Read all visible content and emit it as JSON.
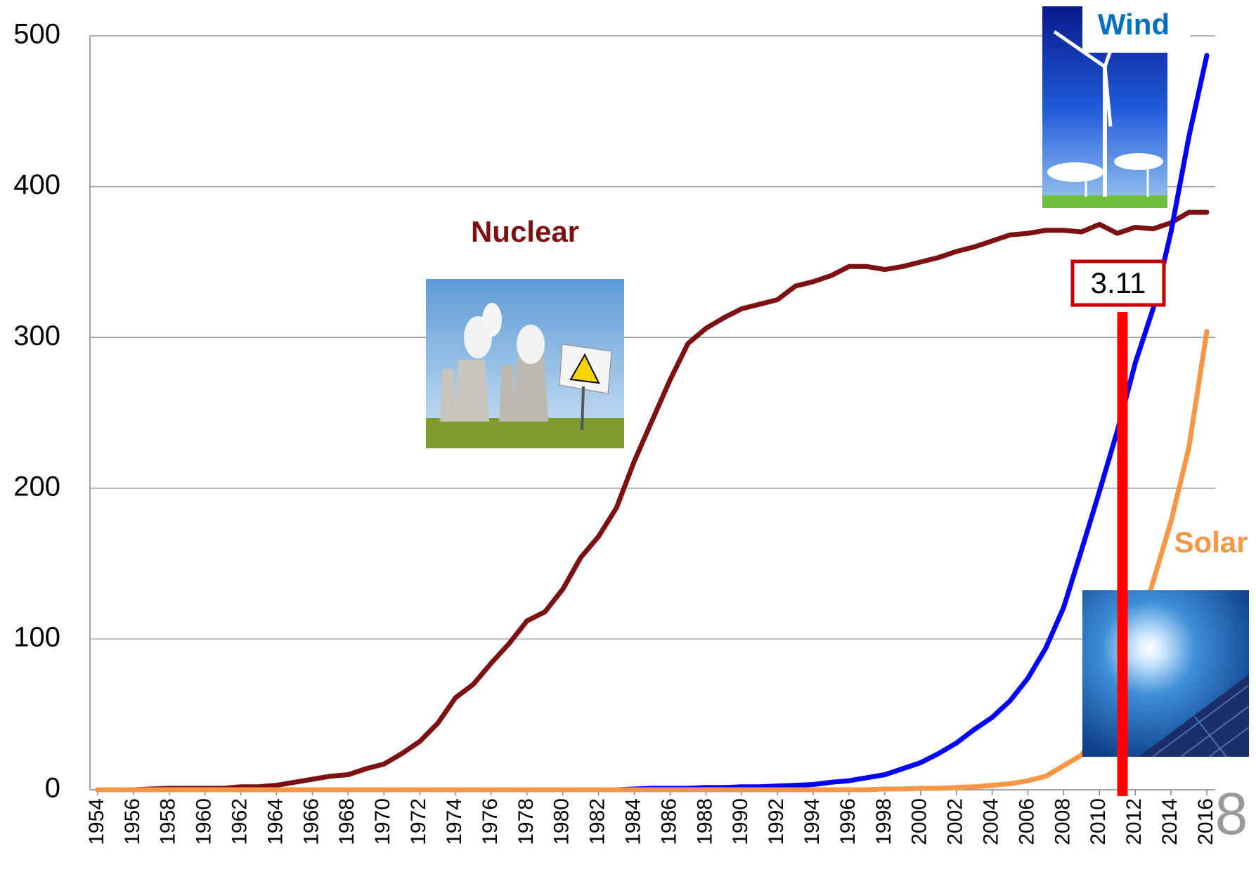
{
  "chart_data": {
    "type": "line",
    "x": [
      1954,
      1955,
      1956,
      1957,
      1958,
      1959,
      1960,
      1961,
      1962,
      1963,
      1964,
      1965,
      1966,
      1967,
      1968,
      1969,
      1970,
      1971,
      1972,
      1973,
      1974,
      1975,
      1976,
      1977,
      1978,
      1979,
      1980,
      1981,
      1982,
      1983,
      1984,
      1985,
      1986,
      1987,
      1988,
      1989,
      1990,
      1991,
      1992,
      1993,
      1994,
      1995,
      1996,
      1997,
      1998,
      1999,
      2000,
      2001,
      2002,
      2003,
      2004,
      2005,
      2006,
      2007,
      2008,
      2009,
      2010,
      2011,
      2012,
      2013,
      2014,
      2015,
      2016
    ],
    "series": [
      {
        "name": "Nuclear",
        "color": "#7b1113",
        "values": [
          0,
          0,
          0,
          0.5,
          1,
          1,
          1,
          1,
          2,
          2,
          3,
          5,
          7,
          9,
          10,
          14,
          17,
          24,
          32,
          44,
          61,
          70,
          84,
          97,
          112,
          118,
          133,
          154,
          168,
          187,
          218,
          245,
          272,
          296,
          306,
          313,
          319,
          322,
          325,
          334,
          337,
          341,
          347,
          347,
          345,
          347,
          350,
          353,
          357,
          360,
          364,
          368,
          369,
          371,
          371,
          370,
          375,
          369,
          373,
          372,
          376,
          383,
          383
        ]
      },
      {
        "name": "Wind",
        "color": "#0000ff",
        "label_color": "#0070c0",
        "values": [
          0,
          0,
          0,
          0,
          0,
          0,
          0,
          0,
          0,
          0,
          0,
          0,
          0,
          0,
          0,
          0,
          0,
          0,
          0,
          0,
          0,
          0,
          0,
          0,
          0,
          0,
          0,
          0,
          0,
          0,
          0.5,
          1,
          1,
          1,
          1.5,
          1.5,
          2,
          2,
          2.5,
          3,
          3.5,
          5,
          6,
          8,
          10,
          14,
          18,
          24,
          31,
          40,
          48,
          59,
          74,
          94,
          121,
          159,
          198,
          238,
          283,
          319,
          370,
          433,
          487
        ]
      },
      {
        "name": "Solar",
        "color": "#f79646",
        "values": [
          0,
          0,
          0,
          0,
          0,
          0,
          0,
          0,
          0,
          0,
          0,
          0,
          0,
          0,
          0,
          0,
          0,
          0,
          0,
          0,
          0,
          0,
          0,
          0,
          0,
          0,
          0,
          0,
          0,
          0,
          0,
          0,
          0,
          0,
          0,
          0,
          0,
          0,
          0,
          0,
          0,
          0,
          0,
          0,
          0.5,
          0.5,
          1,
          1,
          1.5,
          2,
          3,
          4,
          6,
          9,
          16,
          23,
          40,
          71,
          100,
          138,
          178,
          227,
          304
        ]
      }
    ],
    "xlim": [
      1954,
      2016
    ],
    "xticks": [
      1954,
      1956,
      1958,
      1960,
      1962,
      1964,
      1966,
      1968,
      1970,
      1972,
      1974,
      1976,
      1978,
      1980,
      1982,
      1984,
      1986,
      1988,
      1990,
      1992,
      1994,
      1996,
      1998,
      2000,
      2002,
      2004,
      2006,
      2008,
      2010,
      2012,
      2014,
      2016
    ],
    "ylim": [
      0,
      500
    ],
    "yticks": [
      0,
      100,
      200,
      300,
      400,
      500
    ],
    "grid": true,
    "annotations": [
      "3.11",
      "8"
    ]
  }
}
